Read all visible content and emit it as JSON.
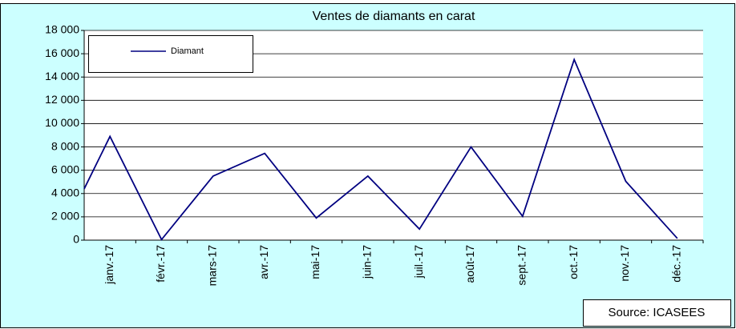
{
  "chart_data": {
    "type": "line",
    "title": "Ventes de diamants en carat",
    "categories": [
      null,
      "janv.-17",
      "févr.-17",
      "mars-17",
      "avr.-17",
      "mai-17",
      "juin-17",
      "juil.-17",
      "août-17",
      "sept.-17",
      "oct.-17",
      "nov.-17",
      "déc.-17"
    ],
    "series": [
      {
        "name": "Diamant",
        "color": "#000080",
        "values": [
          4400,
          8900,
          50,
          5500,
          7450,
          1900,
          5500,
          950,
          8000,
          2050,
          15500,
          5050,
          150
        ]
      }
    ],
    "ylim": [
      0,
      18000
    ],
    "yticks": [
      {
        "value": 0,
        "label": "0"
      },
      {
        "value": 2000,
        "label": "2 000"
      },
      {
        "value": 4000,
        "label": "4 000"
      },
      {
        "value": 6000,
        "label": "6 000"
      },
      {
        "value": 8000,
        "label": "8 000"
      },
      {
        "value": 10000,
        "label": "10 000"
      },
      {
        "value": 12000,
        "label": "12 000"
      },
      {
        "value": 14000,
        "label": "14 000"
      },
      {
        "value": 16000,
        "label": "16 000"
      },
      {
        "value": 18000,
        "label": "18 000"
      }
    ],
    "grid": true,
    "legend": "top-left",
    "source": "Source: ICASEES"
  }
}
